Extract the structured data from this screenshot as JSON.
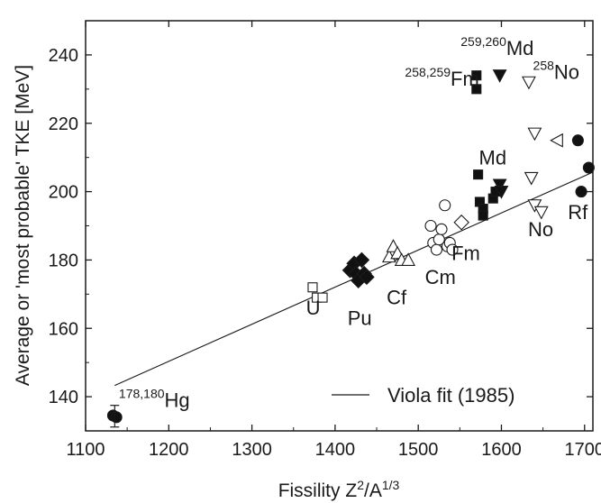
{
  "chart_data": {
    "type": "scatter",
    "title": "",
    "xlabel": {
      "main": "Fissility Z",
      "sup1": "2",
      "mid": "/A",
      "sup2": "1/3"
    },
    "ylabel": "Average or 'most probable' TKE [MeV]",
    "xlim": [
      1100,
      1710
    ],
    "ylim": [
      130,
      250
    ],
    "xticks": [
      1100,
      1200,
      1300,
      1400,
      1500,
      1600,
      1700
    ],
    "yticks": [
      140,
      160,
      180,
      200,
      220,
      240
    ],
    "grid": false,
    "fit_line": {
      "name": "Viola fit (1985)",
      "x": [
        1135,
        1710
      ],
      "y": [
        143.3,
        205.7
      ]
    },
    "legend": {
      "position": "bottom-right",
      "entries": [
        "Viola fit (1985)"
      ]
    },
    "annotations": [
      {
        "sup": "178,180",
        "text": "Hg",
        "x": 1140,
        "y": 137
      },
      {
        "sup": "",
        "text": "U",
        "x": 1365,
        "y": 164
      },
      {
        "sup": "",
        "text": "Pu",
        "x": 1415,
        "y": 161
      },
      {
        "sup": "",
        "text": "Cf",
        "x": 1462,
        "y": 167
      },
      {
        "sup": "",
        "text": "Cm",
        "x": 1508,
        "y": 173
      },
      {
        "sup": "",
        "text": "Fm",
        "x": 1540,
        "y": 180
      },
      {
        "sup": "",
        "text": "Md",
        "x": 1573,
        "y": 208
      },
      {
        "sup": "",
        "text": "No",
        "x": 1632,
        "y": 187
      },
      {
        "sup": "",
        "text": "Rf",
        "x": 1680,
        "y": 192
      },
      {
        "sup": "258,259",
        "text": "Fm",
        "x": 1484,
        "y": 231
      },
      {
        "sup": "259,260",
        "text": "Md",
        "x": 1551,
        "y": 240
      },
      {
        "sup": "258",
        "text": "No",
        "x": 1638,
        "y": 233
      }
    ],
    "series": [
      {
        "marker": "filled-circle",
        "points": [
          [
            1133,
            134.5
          ],
          [
            1137,
            134
          ]
        ]
      },
      {
        "marker": "open-square",
        "points": [
          [
            1373,
            172
          ],
          [
            1378,
            169
          ],
          [
            1385,
            169
          ]
        ]
      },
      {
        "marker": "filled-diamond",
        "points": [
          [
            1418,
            177
          ],
          [
            1423,
            179
          ],
          [
            1425,
            176
          ],
          [
            1428,
            174
          ],
          [
            1432,
            180
          ],
          [
            1435,
            176
          ],
          [
            1438,
            175
          ]
        ]
      },
      {
        "marker": "open-triangle-up",
        "points": [
          [
            1465,
            181
          ],
          [
            1470,
            184
          ],
          [
            1475,
            182
          ],
          [
            1480,
            180
          ],
          [
            1488,
            180
          ]
        ]
      },
      {
        "marker": "open-circle",
        "points": [
          [
            1515,
            190
          ],
          [
            1518,
            185
          ],
          [
            1522,
            183
          ],
          [
            1525,
            186
          ],
          [
            1528,
            189
          ],
          [
            1532,
            196
          ],
          [
            1535,
            184
          ],
          [
            1538,
            185
          ],
          [
            1541,
            183
          ]
        ]
      },
      {
        "marker": "open-diamond",
        "points": [
          [
            1552,
            191
          ]
        ]
      },
      {
        "marker": "filled-square",
        "points": [
          [
            1570,
            234
          ],
          [
            1570,
            230
          ],
          [
            1572,
            205
          ],
          [
            1574,
            197
          ],
          [
            1578,
            195
          ],
          [
            1578,
            193
          ],
          [
            1590,
            198
          ],
          [
            1593,
            200
          ]
        ]
      },
      {
        "marker": "filled-triangle-down",
        "points": [
          [
            1598,
            234
          ],
          [
            1598,
            202
          ],
          [
            1600,
            200
          ]
        ]
      },
      {
        "marker": "open-triangle-down",
        "points": [
          [
            1633,
            232
          ],
          [
            1636,
            204
          ],
          [
            1640,
            196
          ],
          [
            1648,
            194
          ],
          [
            1640,
            217
          ]
        ]
      },
      {
        "marker": "open-triangle-left",
        "points": [
          [
            1667,
            215
          ]
        ]
      },
      {
        "marker": "filled-circle",
        "points": [
          [
            1692,
            215
          ],
          [
            1696,
            200
          ],
          [
            1705,
            207
          ]
        ]
      }
    ]
  }
}
